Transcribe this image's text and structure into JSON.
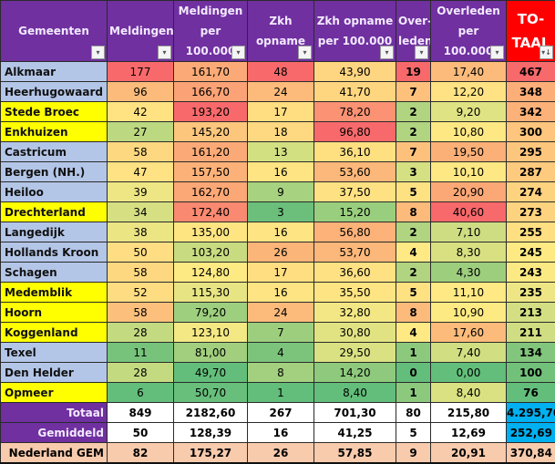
{
  "headers": [
    {
      "label": "Gemeenten",
      "filter": "dropdown"
    },
    {
      "label": "Meldingen",
      "filter": "dropdown"
    },
    {
      "label": "Meldingen per 100.000",
      "filter": "dropdown"
    },
    {
      "label": "Zkh opname",
      "filter": "dropdown"
    },
    {
      "label": "Zkh opname per 100.000",
      "filter": "dropdown"
    },
    {
      "label": "Over-leden",
      "filter": "dropdown"
    },
    {
      "label": "Overleden per 100.000",
      "filter": "dropdown"
    },
    {
      "label": "TO-TAAL",
      "filter": "sort-desc"
    }
  ],
  "icons": {
    "dropdown": "▾",
    "sort-desc": "▾↓"
  },
  "colors": {
    "header": "#7030a0",
    "total_header": "#ff0000",
    "blue_name": "#b4c6e7",
    "yellow_name": "#ffff00",
    "nl_row": "#f8cbad",
    "total_highlight": "#00b0f0"
  },
  "rows": [
    {
      "name": "Alkmaar",
      "name_bg": "blue",
      "values": [
        "177",
        "161,70",
        "48",
        "43,90",
        "19",
        "17,40",
        "467"
      ],
      "colors": [
        "#f8696b",
        "#fbaa77",
        "#f8696b",
        "#fed580",
        "#f8696b",
        "#fcbb7b",
        "#f8696b"
      ]
    },
    {
      "name": "Heerhugowaard",
      "name_bg": "blue",
      "values": [
        "96",
        "166,70",
        "24",
        "41,70",
        "7",
        "12,20",
        "348"
      ],
      "colors": [
        "#fcbb7b",
        "#fba276",
        "#fcbb7b",
        "#fed680",
        "#fdc17c",
        "#ffe283",
        "#fcae78"
      ]
    },
    {
      "name": "Stede Broec",
      "name_bg": "yellow",
      "values": [
        "42",
        "193,20",
        "17",
        "78,20",
        "2",
        "9,20",
        "342"
      ],
      "colors": [
        "#ffe383",
        "#f8696b",
        "#fede81",
        "#fa9273",
        "#b0d47f",
        "#e0e383",
        "#fcb179"
      ]
    },
    {
      "name": "Enkhuizen",
      "name_bg": "yellow",
      "values": [
        "27",
        "145,20",
        "18",
        "96,80",
        "2",
        "10,80",
        "300"
      ],
      "colors": [
        "#bcd881",
        "#fdc67d",
        "#fed981",
        "#f8696b",
        "#b0d47f",
        "#fee883",
        "#fdc57d"
      ]
    },
    {
      "name": "Castricum",
      "name_bg": "blue",
      "values": [
        "58",
        "161,20",
        "13",
        "36,10",
        "7",
        "19,50",
        "295"
      ],
      "colors": [
        "#fed880",
        "#fbaa77",
        "#d3e082",
        "#fee081",
        "#fdc17c",
        "#fbb078",
        "#fdc67d"
      ]
    },
    {
      "name": "Bergen (NH.)",
      "name_bg": "blue",
      "values": [
        "47",
        "157,50",
        "16",
        "53,60",
        "3",
        "10,10",
        "287"
      ],
      "colors": [
        "#ffe283",
        "#fcb179",
        "#fee482",
        "#fcb77a",
        "#d4e082",
        "#fee883",
        "#fdca7e"
      ]
    },
    {
      "name": "Heiloo",
      "name_bg": "blue",
      "values": [
        "39",
        "162,70",
        "9",
        "37,50",
        "5",
        "20,90",
        "274"
      ],
      "colors": [
        "#eee685",
        "#fba776",
        "#a7d27f",
        "#fee182",
        "#fee282",
        "#fba876",
        "#fed380"
      ]
    },
    {
      "name": "Drechterland",
      "name_bg": "yellow",
      "values": [
        "34",
        "172,40",
        "3",
        "15,20",
        "8",
        "40,60",
        "273"
      ],
      "colors": [
        "#d6e083",
        "#f98970",
        "#6bbf7b",
        "#99ce7e",
        "#fcba7b",
        "#f8696b",
        "#fed380"
      ]
    },
    {
      "name": "Langedijk",
      "name_bg": "blue",
      "values": [
        "38",
        "135,00",
        "16",
        "56,80",
        "2",
        "7,10",
        "255"
      ],
      "colors": [
        "#ebe584",
        "#fee582",
        "#fee482",
        "#fcb278",
        "#b0d47f",
        "#cfdd82",
        "#fedf81"
      ]
    },
    {
      "name": "Hollands Kroon",
      "name_bg": "blue",
      "values": [
        "50",
        "103,20",
        "26",
        "53,70",
        "4",
        "8,30",
        "245"
      ],
      "colors": [
        "#ffdd82",
        "#c8db81",
        "#fcb579",
        "#fcb77a",
        "#ffe984",
        "#d8e082",
        "#feea83"
      ]
    },
    {
      "name": "Schagen",
      "name_bg": "blue",
      "values": [
        "58",
        "124,80",
        "17",
        "36,60",
        "2",
        "4,30",
        "243"
      ],
      "colors": [
        "#fed880",
        "#feea83",
        "#fede81",
        "#fee182",
        "#b0d47f",
        "#9dce7e",
        "#fbe983"
      ]
    },
    {
      "name": "Medemblik",
      "name_bg": "yellow",
      "values": [
        "52",
        "115,30",
        "16",
        "35,50",
        "5",
        "11,10",
        "235"
      ],
      "colors": [
        "#fedc81",
        "#e7e483",
        "#fee482",
        "#fee482",
        "#fee282",
        "#ffe984",
        "#eee685"
      ]
    },
    {
      "name": "Hoorn",
      "name_bg": "yellow",
      "values": [
        "58",
        "79,20",
        "24",
        "32,80",
        "8",
        "10,90",
        "213"
      ],
      "colors": [
        "#fcc07c",
        "#9ecf7e",
        "#fcbb7b",
        "#f2e784",
        "#fcba7b",
        "#feea83",
        "#d3df82"
      ]
    },
    {
      "name": "Koggenland",
      "name_bg": "yellow",
      "values": [
        "28",
        "123,10",
        "7",
        "30,80",
        "4",
        "17,60",
        "211"
      ],
      "colors": [
        "#c4da81",
        "#f3e884",
        "#9dce7e",
        "#e1e383",
        "#ffe984",
        "#fcbb7b",
        "#d0dd82"
      ]
    },
    {
      "name": "Texel",
      "name_bg": "blue",
      "values": [
        "11",
        "81,00",
        "4",
        "29,50",
        "1",
        "7,40",
        "134"
      ],
      "colors": [
        "#77c37c",
        "#a1cf7e",
        "#7cc47c",
        "#d9e182",
        "#8cc97d",
        "#d1de82",
        "#82c57c"
      ]
    },
    {
      "name": "Den Helder",
      "name_bg": "blue",
      "values": [
        "28",
        "49,70",
        "8",
        "14,20",
        "0",
        "0,00",
        "100"
      ],
      "colors": [
        "#c4da81",
        "#63be7b",
        "#a3d07f",
        "#8ec97d",
        "#63be7b",
        "#63be7b",
        "#72c17b"
      ]
    },
    {
      "name": "Opmeer",
      "name_bg": "yellow",
      "values": [
        "6",
        "50,70",
        "1",
        "8,40",
        "1",
        "8,40",
        "76"
      ],
      "colors": [
        "#63be7b",
        "#67bf7b",
        "#63be7b",
        "#63be7b",
        "#8cc97d",
        "#dae182",
        "#63be7b"
      ]
    }
  ],
  "summary": [
    {
      "label": "Totaal",
      "values": [
        "849",
        "2182,60",
        "267",
        "701,30",
        "80",
        "215,80",
        "4.295,70"
      ],
      "highlight_last": true
    },
    {
      "label": "Gemiddeld",
      "values": [
        "50",
        "128,39",
        "16",
        "41,25",
        "5",
        "12,69",
        "252,69"
      ],
      "highlight_last": true
    }
  ],
  "nl": {
    "label": "Nederland GEM",
    "values": [
      "82",
      "175,27",
      "26",
      "57,85",
      "9",
      "20,91",
      "370,84"
    ]
  }
}
